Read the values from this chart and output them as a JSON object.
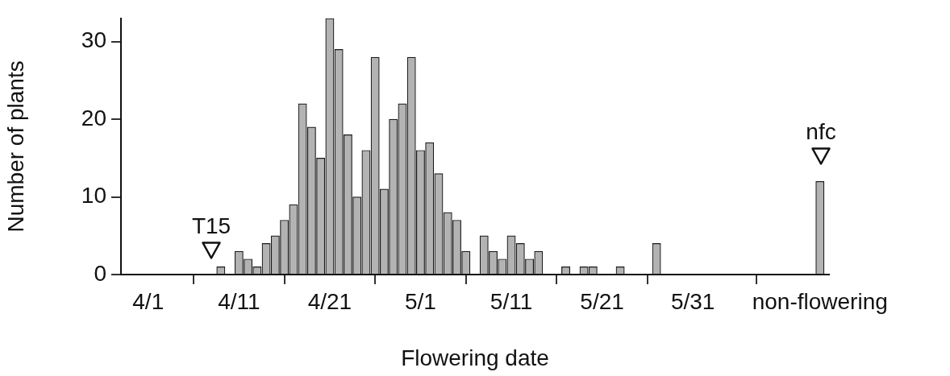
{
  "chart_data": {
    "type": "bar",
    "xlabel": "Flowering date",
    "ylabel": "Number of plants",
    "x": [
      "--04-09",
      "--04-11",
      "--04-12",
      "--04-13",
      "--04-14",
      "--04-15",
      "--04-16",
      "--04-17",
      "--04-18",
      "--04-19",
      "--04-20",
      "--04-21",
      "--04-22",
      "--04-23",
      "--04-24",
      "--04-25",
      "--04-26",
      "--04-27",
      "--04-28",
      "--04-29",
      "--04-30",
      "--05-01",
      "--05-02",
      "--05-03",
      "--05-04",
      "--05-05",
      "--05-06",
      "--05-08",
      "--05-09",
      "--05-10",
      "--05-11",
      "--05-12",
      "--05-13",
      "--05-14",
      "--05-17",
      "--05-19",
      "--05-20",
      "--05-23",
      "--05-27",
      "--06-14"
    ],
    "values": [
      1,
      3,
      2,
      1,
      4,
      5,
      7,
      9,
      22,
      19,
      15,
      33,
      29,
      18,
      10,
      16,
      28,
      11,
      20,
      22,
      28,
      16,
      17,
      13,
      8,
      7,
      3,
      5,
      3,
      2,
      5,
      4,
      2,
      3,
      1,
      1,
      1,
      1,
      4,
      12
    ],
    "color": "#b3b3b3",
    "xlim": [
      "--03-29",
      "--06-15"
    ],
    "xticks": [
      {
        "value": "--04-01",
        "label": "4/1"
      },
      {
        "value": "--04-11",
        "label": "4/11"
      },
      {
        "value": "--04-21",
        "label": "4/21"
      },
      {
        "value": "--05-01",
        "label": "5/1"
      },
      {
        "value": "--05-11",
        "label": "5/11"
      },
      {
        "value": "--05-21",
        "label": "5/21"
      },
      {
        "value": "--05-31",
        "label": "5/31"
      },
      {
        "value": "--06-14",
        "label": "non-flowering"
      }
    ],
    "ylim": [
      0,
      33
    ],
    "yticks": [
      0,
      10,
      20,
      30
    ],
    "annotations": [
      "T15",
      "nfc"
    ]
  }
}
